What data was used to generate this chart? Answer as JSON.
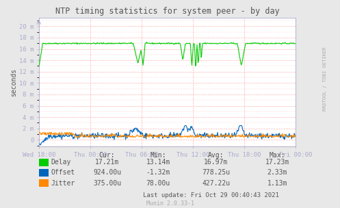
{
  "title": "NTP timing statistics for system peer - by day",
  "ylabel": "seconds",
  "background_color": "#e8e8e8",
  "plot_bg_color": "#ffffff",
  "grid_color_minor": "#ffaaaa",
  "grid_color_major": "#aaaacc",
  "x_labels": [
    "Wed 18:00",
    "Thu 00:00",
    "Thu 06:00",
    "Thu 12:00",
    "Thu 18:00",
    "Fri 00:00"
  ],
  "y_labels": [
    "0",
    "2 m",
    "4 m",
    "6 m",
    "8 m",
    "10 m",
    "12 m",
    "14 m",
    "16 m",
    "18 m",
    "20 m"
  ],
  "y_ticks": [
    0.0,
    0.002,
    0.004,
    0.006,
    0.008,
    0.01,
    0.012,
    0.014,
    0.016,
    0.018,
    0.02
  ],
  "ylim": [
    -0.0012,
    0.0215
  ],
  "delay_color": "#00cc00",
  "offset_color": "#0066bb",
  "jitter_color": "#ff8800",
  "legend_items": [
    "Delay",
    "Offset",
    "Jitter"
  ],
  "stats_headers": [
    "Cur:",
    "Min:",
    "Avg:",
    "Max:"
  ],
  "stats_cur": [
    "17.21m",
    "924.00u",
    "375.00u"
  ],
  "stats_min": [
    "13.14m",
    "-1.32m",
    "78.00u"
  ],
  "stats_avg": [
    "16.97m",
    "778.25u",
    "427.22u"
  ],
  "stats_max": [
    "17.23m",
    "2.33m",
    "1.13m"
  ],
  "last_update": "Last update: Fri Oct 29 00:40:43 2021",
  "munin_version": "Munin 2.0.33-1",
  "watermark": "RRDTOOL / TOBI OETIKER",
  "text_color": "#555555",
  "axis_color": "#aaaacc",
  "tick_color": "#555555"
}
